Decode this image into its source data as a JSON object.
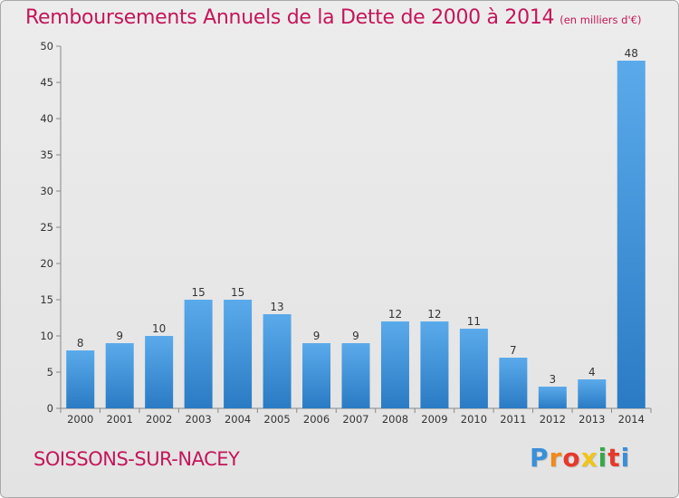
{
  "title": "Remboursements Annuels de la Dette de 2000 à 2014",
  "subtitle": "(en milliers d'€)",
  "city": "SOISSONS-SUR-NACEY",
  "brand": {
    "text": "Proxiti",
    "letters": [
      {
        "ch": "P",
        "color": "#3a8fd8"
      },
      {
        "ch": "r",
        "color": "#f08a1c"
      },
      {
        "ch": "o",
        "color": "#e5392c"
      },
      {
        "ch": "x",
        "color": "#f0c419"
      },
      {
        "ch": "i",
        "color": "#3aa64a"
      },
      {
        "ch": "t",
        "color": "#e5392c"
      },
      {
        "ch": "i",
        "color": "#3a8fd8"
      }
    ]
  },
  "colors": {
    "title": "#c4165a",
    "bar_top": "#5aaaeb",
    "bar_bottom": "#2a7bc4",
    "axis": "#555555"
  },
  "chart_data": {
    "type": "bar",
    "title": "Remboursements Annuels de la Dette de 2000 à 2014",
    "subtitle": "(en milliers d'€)",
    "categories": [
      "2000",
      "2001",
      "2002",
      "2003",
      "2004",
      "2005",
      "2006",
      "2007",
      "2008",
      "2009",
      "2010",
      "2011",
      "2012",
      "2013",
      "2014"
    ],
    "values": [
      8,
      9,
      10,
      15,
      15,
      13,
      9,
      9,
      12,
      12,
      11,
      7,
      3,
      4,
      48
    ],
    "ylim": [
      0,
      50
    ],
    "yticks": [
      0,
      5,
      10,
      15,
      20,
      25,
      30,
      35,
      40,
      45,
      50
    ],
    "grid": false,
    "legend": "none"
  }
}
